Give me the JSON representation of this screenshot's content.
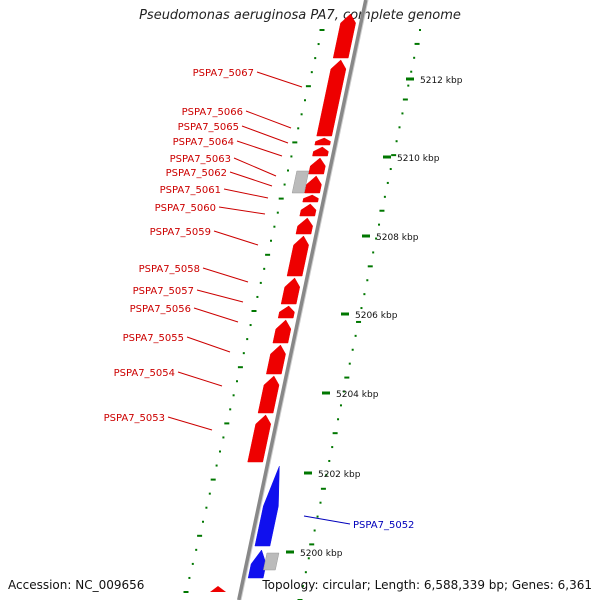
{
  "map": {
    "title": "Pseudomonas aeruginosa PA7, complete genome",
    "accession_text": "Accession: NC_009656",
    "summary_text": "Topology: circular; Length: 6,588,339 bp; Genes: 6,361",
    "colors": {
      "forward_gene": "#ee0000",
      "reverse_gene": "#1010ee",
      "other_feature": "#bbbbbb",
      "backbone": "#888888",
      "tick": "#007700",
      "forward_label": "#cc0000",
      "reverse_label": "#0000bb"
    },
    "kbp_ticks": [
      {
        "label": "5200 kbp",
        "kbp": 5200
      },
      {
        "label": "5202 kbp",
        "kbp": 5202
      },
      {
        "label": "5204 kbp",
        "kbp": 5204
      },
      {
        "label": "5206 kbp",
        "kbp": 5206
      },
      {
        "label": "5208 kbp",
        "kbp": 5208
      },
      {
        "label": "5210 kbp",
        "kbp": 5210
      },
      {
        "label": "5212 kbp",
        "kbp": 5212
      }
    ],
    "genes": [
      {
        "label": "PSPA7_5052",
        "strand": "reverse"
      },
      {
        "label": "PSPA7_5053",
        "strand": "forward"
      },
      {
        "label": "PSPA7_5054",
        "strand": "forward"
      },
      {
        "label": "PSPA7_5055",
        "strand": "forward"
      },
      {
        "label": "PSPA7_5056",
        "strand": "forward"
      },
      {
        "label": "PSPA7_5057",
        "strand": "forward"
      },
      {
        "label": "PSPA7_5058",
        "strand": "forward"
      },
      {
        "label": "PSPA7_5059",
        "strand": "forward"
      },
      {
        "label": "PSPA7_5060",
        "strand": "forward"
      },
      {
        "label": "PSPA7_5061",
        "strand": "forward"
      },
      {
        "label": "PSPA7_5062",
        "strand": "forward"
      },
      {
        "label": "PSPA7_5063",
        "strand": "forward"
      },
      {
        "label": "PSPA7_5064",
        "strand": "forward"
      },
      {
        "label": "PSPA7_5065",
        "strand": "forward"
      },
      {
        "label": "PSPA7_5066",
        "strand": "forward"
      },
      {
        "label": "PSPA7_5067",
        "strand": "forward"
      }
    ]
  }
}
